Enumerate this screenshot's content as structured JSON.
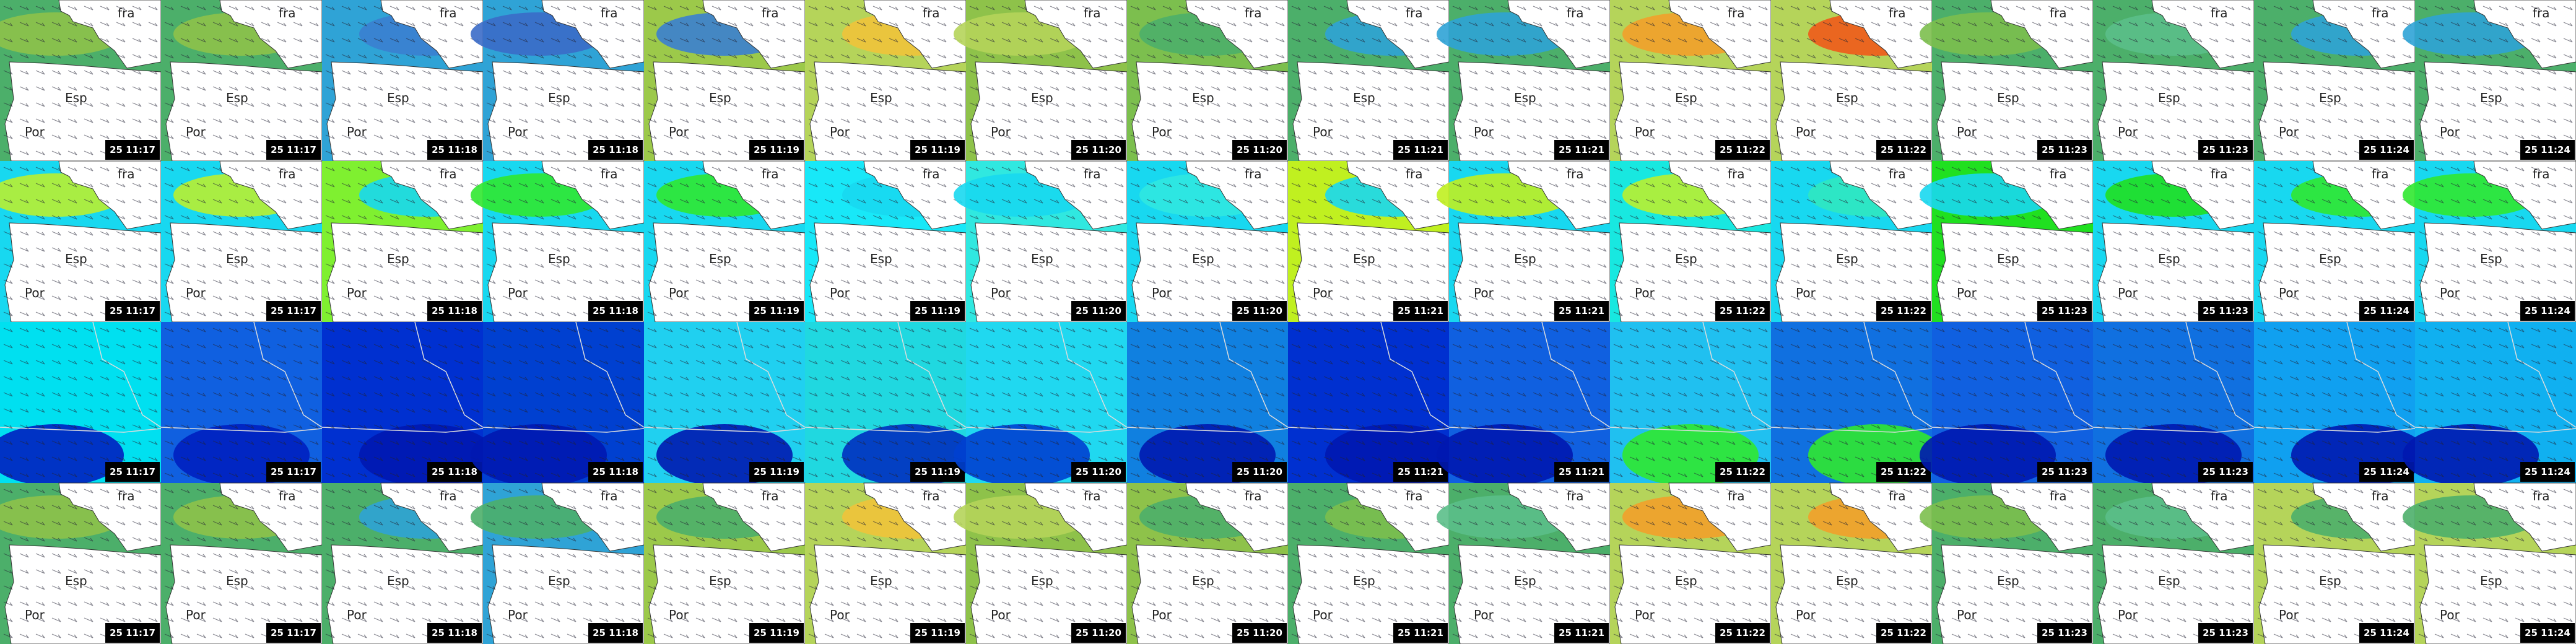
{
  "labels": {
    "france": "fra",
    "spain": "Esp",
    "portugal": "Por"
  },
  "times": [
    "25 11:17",
    "25 11:17",
    "25 11:18",
    "25 11:18",
    "25 11:19",
    "25 11:19",
    "25 11:20",
    "25 11:20",
    "25 11:21",
    "25 11:21",
    "25 11:22",
    "25 11:22",
    "25 11:23",
    "25 11:23",
    "25 11:24",
    "25 11:24"
  ]
}
